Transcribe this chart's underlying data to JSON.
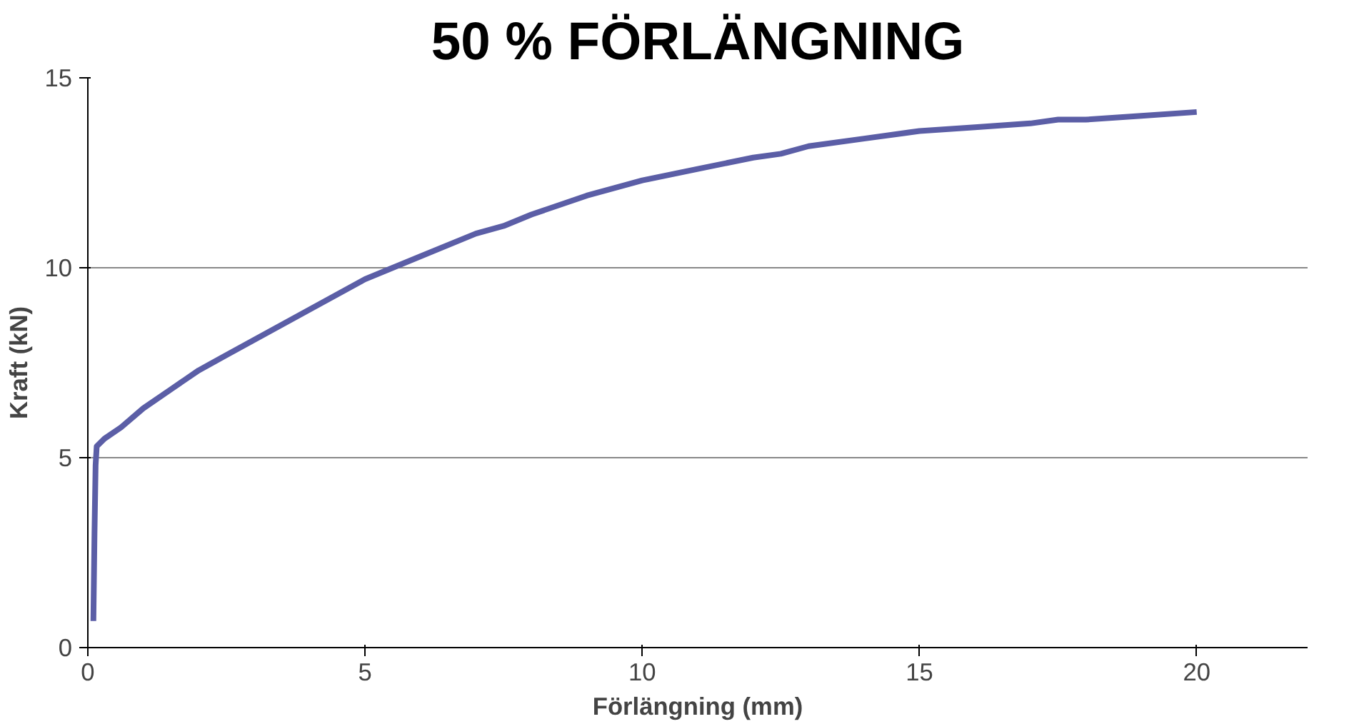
{
  "chart_data": {
    "type": "line",
    "title": "50 % FÖRLÄNGNING",
    "xlabel": "Förlängning (mm)",
    "ylabel": "Kraft (kN)",
    "xlim": [
      0,
      22
    ],
    "xticks": [
      0,
      5,
      10,
      15,
      20
    ],
    "ylim": [
      0,
      15
    ],
    "yticks": [
      0,
      5,
      10,
      15
    ],
    "grid": "y",
    "marker": "none",
    "line_style": "solid",
    "series": [
      {
        "color": "#5b5ea6",
        "x": [
          0.1,
          0.12,
          0.14,
          0.16,
          0.3,
          0.6,
          1.0,
          1.5,
          2.0,
          2.5,
          3.0,
          4.0,
          5.0,
          6.0,
          7.0,
          7.5,
          8.0,
          9.0,
          10.0,
          11.0,
          12.0,
          12.5,
          13.0,
          14.0,
          15.0,
          16.0,
          17.0,
          17.5,
          18.0,
          19.0,
          20.0
        ],
        "values": [
          0.7,
          3.0,
          4.8,
          5.3,
          5.5,
          5.8,
          6.3,
          6.8,
          7.3,
          7.7,
          8.1,
          8.9,
          9.7,
          10.3,
          10.9,
          11.1,
          11.4,
          11.9,
          12.3,
          12.6,
          12.9,
          13.0,
          13.2,
          13.4,
          13.6,
          13.7,
          13.8,
          13.9,
          13.9,
          14.0,
          14.1
        ]
      }
    ]
  }
}
